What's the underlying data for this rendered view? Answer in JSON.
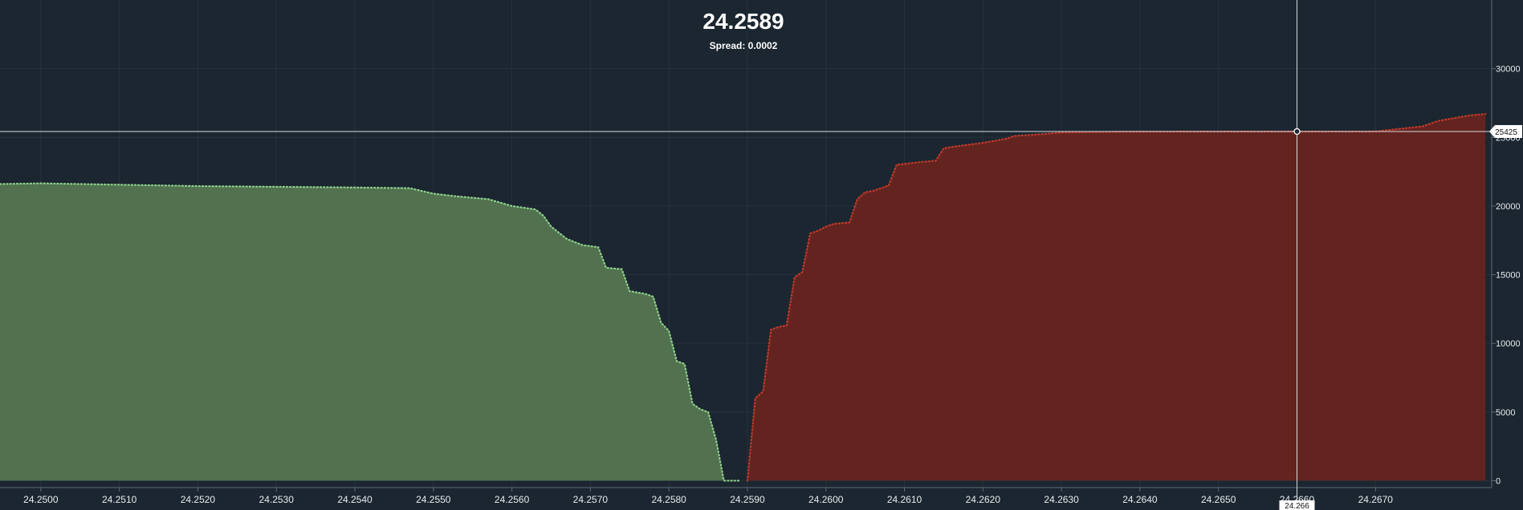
{
  "header": {
    "price": "24.2589",
    "spread": "Spread: 0.0002"
  },
  "crosshair": {
    "price_label": "24.266",
    "volume_label": "25425",
    "x": 24.266,
    "y": 25425
  },
  "colors": {
    "background": "#1b2630",
    "bid_fill": "#51714f",
    "bid_line": "#8fd18b",
    "ask_fill": "#632420",
    "ask_line": "#c0392b",
    "grid": "#26323c"
  },
  "chart_data": {
    "type": "area",
    "title": "",
    "xlabel": "",
    "ylabel": "",
    "xlim": [
      24.24948,
      24.26848
    ],
    "ylim": [
      -500,
      35000
    ],
    "x_ticks": [
      "24.2500",
      "24.2510",
      "24.2520",
      "24.2530",
      "24.2540",
      "24.2550",
      "24.2560",
      "24.2570",
      "24.2580",
      "24.2590",
      "24.2600",
      "24.2610",
      "24.2620",
      "24.2630",
      "24.2640",
      "24.2650",
      "24.2660",
      "24.2670"
    ],
    "y_ticks": [
      "0",
      "5000",
      "10000",
      "15000",
      "20000",
      "25000",
      "30000"
    ],
    "series": [
      {
        "side": "bid",
        "x": [
          24.24948,
          24.25,
          24.251,
          24.252,
          24.253,
          24.254,
          24.2547,
          24.255,
          24.2553,
          24.2557,
          24.256,
          24.2563,
          24.2564,
          24.2565,
          24.2567,
          24.2569,
          24.2571,
          24.2572,
          24.2574,
          24.2575,
          24.2576,
          24.2577,
          24.2578,
          24.2579,
          24.258,
          24.2581,
          24.2582,
          24.2583,
          24.2584,
          24.2585,
          24.2586,
          24.2587,
          24.2588,
          24.2589
        ],
        "y": [
          21600,
          21650,
          21550,
          21450,
          21400,
          21350,
          21300,
          20900,
          20700,
          20500,
          20000,
          19750,
          19300,
          18500,
          17600,
          17150,
          17000,
          15500,
          15400,
          13800,
          13700,
          13600,
          13400,
          11500,
          10900,
          8700,
          8500,
          5600,
          5200,
          5000,
          3000,
          0,
          0,
          0
        ]
      },
      {
        "side": "ask",
        "x": [
          24.259,
          24.2591,
          24.2592,
          24.2593,
          24.2594,
          24.2595,
          24.2596,
          24.2597,
          24.2598,
          24.2599,
          24.26,
          24.2601,
          24.2603,
          24.2604,
          24.2605,
          24.2606,
          24.2607,
          24.2608,
          24.2609,
          24.2612,
          24.2614,
          24.2615,
          24.2616,
          24.262,
          24.2622,
          24.2623,
          24.2624,
          24.2628,
          24.263,
          24.2636,
          24.2637,
          24.264,
          24.265,
          24.266,
          24.267,
          24.2676,
          24.2678,
          24.2682,
          24.2684
        ],
        "y": [
          0,
          6000,
          6500,
          11000,
          11200,
          11300,
          14800,
          15200,
          18000,
          18200,
          18500,
          18700,
          18800,
          20500,
          21000,
          21100,
          21300,
          21500,
          23000,
          23200,
          23300,
          24200,
          24300,
          24600,
          24800,
          24900,
          25100,
          25250,
          25350,
          25400,
          25410,
          25420,
          25425,
          25425,
          25430,
          25800,
          26200,
          26600,
          26700
        ]
      }
    ],
    "legend": "none",
    "grid": true
  }
}
